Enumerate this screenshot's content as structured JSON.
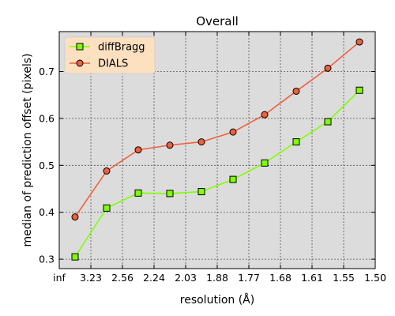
{
  "chart_data": {
    "type": "line",
    "title": "Overall",
    "xlabel": "resolution (Å)",
    "ylabel": "median of prediction offset (pixels)",
    "x_tick_labels": [
      "inf",
      "3.23",
      "2.56",
      "2.24",
      "2.03",
      "1.88",
      "1.77",
      "1.68",
      "1.61",
      "1.55",
      "1.50"
    ],
    "y_ticks": [
      0.3,
      0.4,
      0.5,
      0.6,
      0.7
    ],
    "y_tick_labels": [
      "0.3",
      "0.4",
      "0.5",
      "0.6",
      "0.7"
    ],
    "ylim": [
      0.28,
      0.785
    ],
    "x_index_range": [
      0,
      10
    ],
    "grid": true,
    "background": "#dcdcdc",
    "legend_location": "upper-left",
    "legend_background": "#fde0c0",
    "series": [
      {
        "name": "diffBragg",
        "color": "#7fff00",
        "marker": "square",
        "marker_face": "#7fff00",
        "x": [
          0.5,
          1.5,
          2.5,
          3.5,
          4.5,
          5.5,
          6.5,
          7.5,
          8.5,
          9.5
        ],
        "values": [
          0.305,
          0.409,
          0.441,
          0.44,
          0.444,
          0.47,
          0.505,
          0.55,
          0.593,
          0.66
        ]
      },
      {
        "name": "DIALS",
        "color": "#f0603c",
        "marker": "circle",
        "marker_face": "#f0603c",
        "x": [
          0.5,
          1.5,
          2.5,
          3.5,
          4.5,
          5.5,
          6.5,
          7.5,
          8.5,
          9.5
        ],
        "values": [
          0.39,
          0.488,
          0.533,
          0.543,
          0.55,
          0.571,
          0.608,
          0.658,
          0.707,
          0.763
        ]
      }
    ]
  }
}
